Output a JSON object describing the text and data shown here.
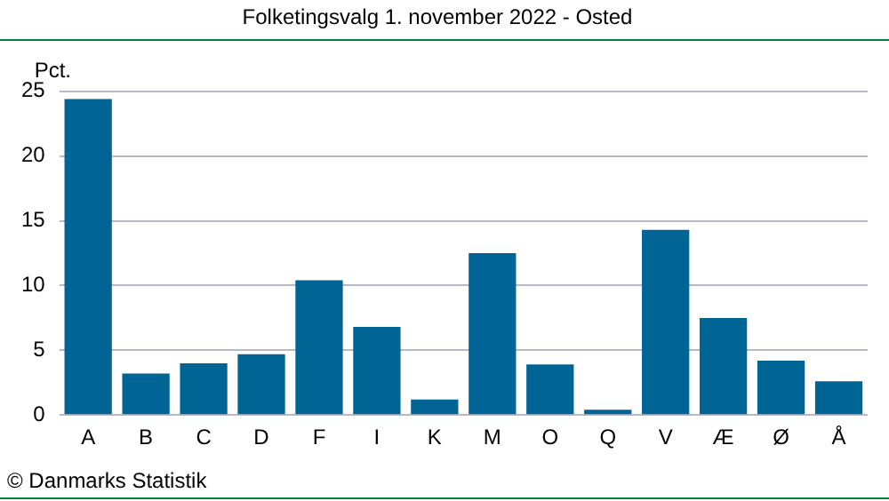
{
  "chart_data": {
    "type": "bar",
    "title": "Folketingsvalg 1. november 2022 - Osted",
    "ylabel": "Pct.",
    "categories": [
      "A",
      "B",
      "C",
      "D",
      "F",
      "I",
      "K",
      "M",
      "O",
      "Q",
      "V",
      "Æ",
      "Ø",
      "Å"
    ],
    "values": [
      24.4,
      3.2,
      4.0,
      4.7,
      10.4,
      6.8,
      1.2,
      12.5,
      3.9,
      0.4,
      14.3,
      7.5,
      4.2,
      2.6
    ],
    "color": "#006495",
    "ylim": [
      0,
      25
    ],
    "yticks": [
      0,
      5,
      10,
      15,
      20,
      25
    ],
    "grid": "y",
    "legend": false,
    "annotations": [
      "© Danmarks Statistik"
    ]
  }
}
